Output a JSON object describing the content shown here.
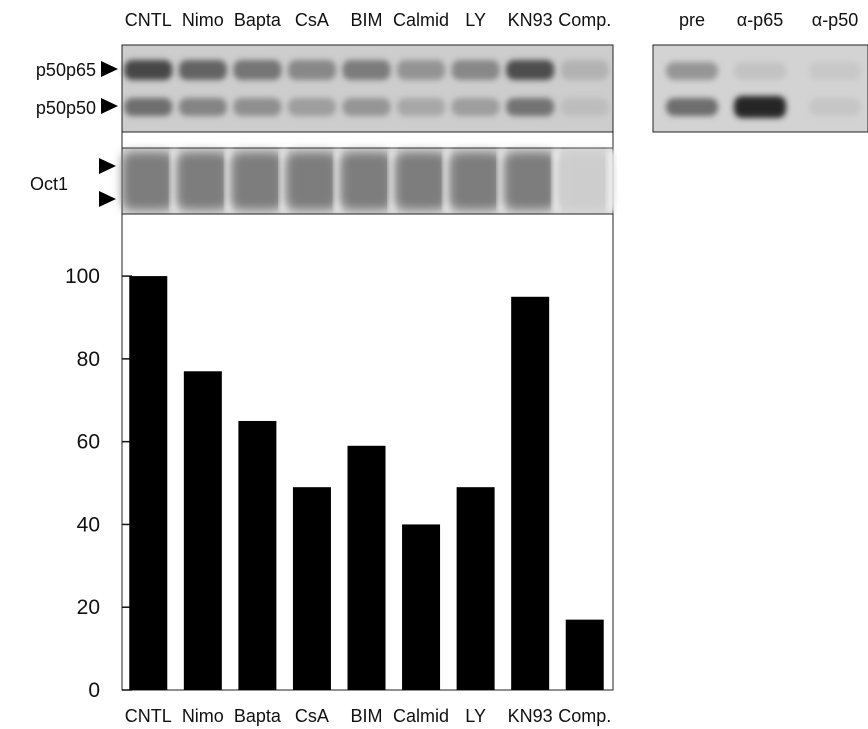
{
  "gel": {
    "lanes": [
      "CNTL",
      "Nimo",
      "Bapta",
      "CsA",
      "BIM",
      "Calmid",
      "LY",
      "KN93",
      "Comp."
    ],
    "band_labels": [
      "p50p65",
      "p50p50"
    ],
    "oct_label": "Oct1"
  },
  "supershift": {
    "lanes": [
      "pre",
      "α-p65",
      "α-p50"
    ]
  },
  "chart_data": {
    "type": "bar",
    "categories": [
      "CNTL",
      "Nimo",
      "Bapta",
      "CsA",
      "BIM",
      "Calmid",
      "LY",
      "KN93",
      "Comp."
    ],
    "values": [
      100,
      77,
      65,
      49,
      59,
      40,
      49,
      95,
      17
    ],
    "title": "",
    "xlabel": "",
    "ylabel": "",
    "ylim": [
      0,
      115
    ],
    "yticks": [
      0,
      20,
      40,
      60,
      80,
      100
    ],
    "bar_color": "#000000",
    "grid": false
  }
}
